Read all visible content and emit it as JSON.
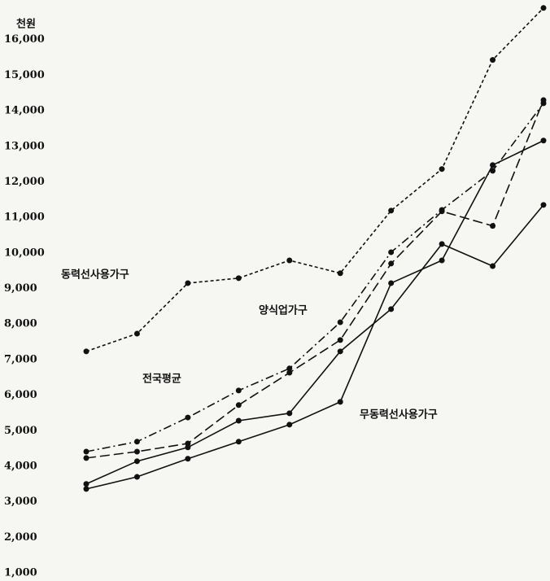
{
  "chart_data": {
    "type": "line",
    "unit": "천원",
    "categories": [
      null,
      null,
      null,
      null,
      null,
      null,
      null,
      null,
      null,
      null
    ],
    "ylim": [
      1000,
      17000
    ],
    "yticks": [
      {
        "value": 1000,
        "label": "1,000"
      },
      {
        "value": 2000,
        "label": "2,000"
      },
      {
        "value": 3000,
        "label": "3,000"
      },
      {
        "value": 4000,
        "label": "4,000"
      },
      {
        "value": 5000,
        "label": "5,000"
      },
      {
        "value": 6000,
        "label": "6,000"
      },
      {
        "value": 7000,
        "label": "7,000"
      },
      {
        "value": 8000,
        "label": "8,000"
      },
      {
        "value": 9000,
        "label": "9,000"
      },
      {
        "value": 10000,
        "label": "10,000"
      },
      {
        "value": 11000,
        "label": "11,000"
      },
      {
        "value": 12000,
        "label": "12,000"
      },
      {
        "value": 13000,
        "label": "13,000"
      },
      {
        "value": 14000,
        "label": "14,000"
      },
      {
        "value": 15000,
        "label": "15,000"
      },
      {
        "value": 16000,
        "label": "16,000"
      }
    ],
    "grid": false,
    "series": [
      {
        "name": "동력선사용가구",
        "color": "#111111",
        "style": "dotted",
        "values": [
          7230,
          7730,
          9150,
          9290,
          9790,
          9430,
          11190,
          12360,
          15430,
          16890
        ]
      },
      {
        "name": "양식업가구",
        "color": "#111111",
        "style": "dashdot",
        "values": [
          4410,
          4690,
          5370,
          6130,
          6750,
          8050,
          10020,
          11210,
          12310,
          14210
        ]
      },
      {
        "name": "전국평균",
        "color": "#111111",
        "style": "dashed",
        "values": [
          4230,
          4410,
          4640,
          5720,
          6630,
          7550,
          9700,
          11170,
          10760,
          14300
        ]
      },
      {
        "color": "#111111",
        "style": "solid",
        "values": [
          3500,
          4140,
          4530,
          5280,
          5490,
          7230,
          8420,
          10250,
          9630,
          11350
        ]
      },
      {
        "name": "무동력선사용가구",
        "color": "#111111",
        "style": "solid",
        "values": [
          3360,
          3700,
          4210,
          4690,
          5170,
          5810,
          9150,
          9790,
          12470,
          13160
        ]
      }
    ]
  }
}
